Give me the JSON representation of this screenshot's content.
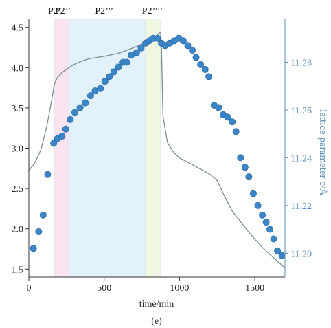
{
  "chart_data": {
    "type": "scatter",
    "caption": "(e)",
    "xlabel": "time/min",
    "ylabel_left": "",
    "ylabel_right": "lattice parameter c/Å",
    "xlim": [
      0,
      1700
    ],
    "ylim_left": [
      1.4,
      4.6
    ],
    "ylim_right": [
      11.19,
      11.298
    ],
    "x_ticks": [
      0,
      500,
      1000,
      1500
    ],
    "y_left_ticks": [
      1.5,
      2.0,
      2.5,
      3.0,
      3.5,
      4.0,
      4.5
    ],
    "y_left_tick_labels": [
      "1.5",
      "2.0",
      "2.5",
      "3.0",
      "3.5",
      "4.0",
      "4.5"
    ],
    "y_right_ticks": [
      11.2,
      11.22,
      11.24,
      11.26,
      11.28
    ],
    "y_right_tick_labels": [
      "11.20",
      "11.22",
      "11.24",
      "11.26",
      "11.28"
    ],
    "grid": false,
    "colors": {
      "voltage_line": "#7a8f8a",
      "points": "#3b86c8",
      "points_edge": "#2a6aa8",
      "right_axis": "#5a8fb3",
      "axis": "#333333"
    },
    "phase_regions": [
      {
        "label": "P2'",
        "x_range": [
          170,
          210
        ],
        "color": "#fbe3ee"
      },
      {
        "label": "P2''",
        "x_range": [
          210,
          265
        ],
        "color": "#fbe3ee"
      },
      {
        "label": "P2'''",
        "x_range": [
          265,
          770
        ],
        "color": "#e2f0fb"
      },
      {
        "label": "P2''''",
        "x_range": [
          770,
          875
        ],
        "color": "#eef5e0"
      }
    ],
    "phase_labels": [
      {
        "text": "P2’",
        "x": 172
      },
      {
        "text": "P2’’",
        "x": 225
      },
      {
        "text": "P2’’’",
        "x": 500
      },
      {
        "text": "P2’’’’",
        "x": 820
      }
    ],
    "series": [
      {
        "axis": "left",
        "kind": "line",
        "x": [
          0,
          40,
          80,
          120,
          150,
          170,
          190,
          220,
          260,
          300,
          350,
          400,
          500,
          600,
          700,
          760,
          800,
          850,
          875,
          880,
          890,
          920,
          960,
          1000,
          1100,
          1200,
          1250,
          1300,
          1350,
          1400,
          1450,
          1500,
          1550,
          1600,
          1650,
          1700
        ],
        "y": [
          2.72,
          2.82,
          2.98,
          3.28,
          3.58,
          3.8,
          3.88,
          3.94,
          3.99,
          4.04,
          4.08,
          4.11,
          4.14,
          4.18,
          4.25,
          4.3,
          4.34,
          4.4,
          4.44,
          4.28,
          3.4,
          3.07,
          2.95,
          2.88,
          2.78,
          2.68,
          2.6,
          2.4,
          2.22,
          2.1,
          1.98,
          1.87,
          1.77,
          1.68,
          1.6,
          1.51
        ]
      },
      {
        "axis": "right",
        "kind": "points",
        "x": [
          30,
          65,
          95,
          125,
          165,
          190,
          220,
          245,
          275,
          305,
          340,
          375,
          410,
          440,
          475,
          505,
          535,
          565,
          595,
          625,
          650,
          680,
          715,
          745,
          775,
          800,
          825,
          855,
          880,
          905,
          935,
          965,
          995,
          1025,
          1055,
          1085,
          1110,
          1140,
          1170,
          1195,
          1230,
          1260,
          1290,
          1320,
          1350,
          1375,
          1405,
          1435,
          1460,
          1490,
          1520,
          1550,
          1575,
          1600,
          1625,
          1650,
          1680
        ],
        "y": [
          11.202,
          11.209,
          11.216,
          11.233,
          11.246,
          11.248,
          11.249,
          11.252,
          11.256,
          11.259,
          11.261,
          11.263,
          11.266,
          11.268,
          11.269,
          11.272,
          11.274,
          11.276,
          11.278,
          11.28,
          11.28,
          11.283,
          11.284,
          11.286,
          11.288,
          11.289,
          11.29,
          11.29,
          11.288,
          11.287,
          11.288,
          11.289,
          11.29,
          11.289,
          11.287,
          11.285,
          11.282,
          11.279,
          11.277,
          11.274,
          11.262,
          11.261,
          11.258,
          11.257,
          11.255,
          11.251,
          11.24,
          11.236,
          11.232,
          11.225,
          11.22,
          11.216,
          11.213,
          11.21,
          11.206,
          11.201,
          11.199
        ]
      }
    ]
  }
}
